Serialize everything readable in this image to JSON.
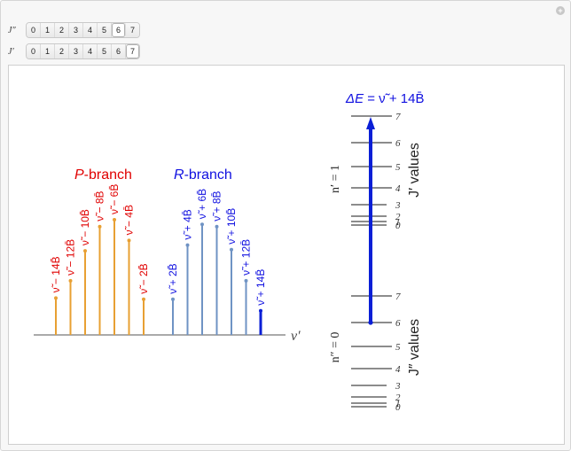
{
  "controls": {
    "jpp": {
      "label": "J″",
      "options": [
        "0",
        "1",
        "2",
        "3",
        "4",
        "5",
        "6",
        "7"
      ],
      "selected": 6
    },
    "jp": {
      "label": "J′",
      "options": [
        "0",
        "1",
        "2",
        "3",
        "4",
        "5",
        "6",
        "7"
      ],
      "selected": 7
    }
  },
  "colors": {
    "p_branch": "#e8a033",
    "r_branch": "#6f93c4",
    "highlight": "#0a1fd6",
    "p_text": "#e00000",
    "r_text": "#1010e0",
    "level": "#666666"
  },
  "spectrum": {
    "p_title_italic": "P",
    "p_title_rest": "-branch",
    "r_title_italic": "R",
    "r_title_rest": "-branch",
    "axis_label": "ν′",
    "p_lines": [
      {
        "label": "ν̃ − 14B̄",
        "height": 0.32
      },
      {
        "label": "ν̃ − 12B̄",
        "height": 0.47
      },
      {
        "label": "ν̃ − 10B̄",
        "height": 0.73
      },
      {
        "label": "ν̃ − 8B̄",
        "height": 0.94
      },
      {
        "label": "ν̃ − 6B̄",
        "height": 1.0
      },
      {
        "label": "ν̃ − 4B̄",
        "height": 0.82
      },
      {
        "label": "ν̃ − 2B̄",
        "height": 0.31
      }
    ],
    "r_lines": [
      {
        "label": "ν̃ + 2B̄",
        "height": 0.31
      },
      {
        "label": "ν̃ + 4B̄",
        "height": 0.78
      },
      {
        "label": "ν̃ + 6B̄",
        "height": 0.96
      },
      {
        "label": "ν̃ + 8B̄",
        "height": 0.94
      },
      {
        "label": "ν̃ + 10B̄",
        "height": 0.74
      },
      {
        "label": "ν̃ + 12B̄",
        "height": 0.47
      },
      {
        "label": "ν̃ + 14B̄",
        "height": 0.21
      }
    ]
  },
  "energy": {
    "delta_e_lhs": "ΔE",
    "delta_e_rhs": " = ν̃ + 14B̄",
    "upper_state": "n′ = 1",
    "lower_state": "n″ = 0",
    "upper_axis": "J′ values",
    "lower_axis": "J″ values",
    "upper_levels": [
      "0",
      "1",
      "2",
      "3",
      "4",
      "5",
      "6",
      "7"
    ],
    "lower_levels": [
      "0",
      "1",
      "2",
      "3",
      "4",
      "5",
      "6",
      "7"
    ]
  }
}
